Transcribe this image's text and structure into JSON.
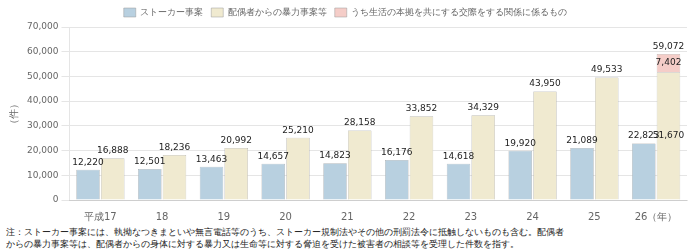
{
  "chart_data": {
    "type": "bar",
    "ylabel": "（件）",
    "categories": [
      "平成17",
      "18",
      "19",
      "20",
      "21",
      "22",
      "23",
      "24",
      "25",
      "26（年）"
    ],
    "series": [
      {
        "name": "ストーカー事案",
        "color": "#b8d0e0",
        "values": [
          12220,
          12501,
          13463,
          14657,
          14823,
          16176,
          14618,
          19920,
          21089,
          22823
        ],
        "value_labels": [
          "12,220",
          "12,501",
          "13,463",
          "14,657",
          "14,823",
          "16,176",
          "14,618",
          "19,920",
          "21,089",
          "22,823"
        ]
      },
      {
        "name": "配偶者からの暴力事案等",
        "color": "#f0ead0",
        "values": [
          16888,
          18236,
          20992,
          25210,
          28158,
          33852,
          34329,
          43950,
          49533,
          51670
        ],
        "value_labels": [
          "16,888",
          "18,236",
          "20,992",
          "25,210",
          "28,158",
          "33,852",
          "34,329",
          "43,950",
          "49,533",
          "51,670"
        ]
      },
      {
        "name": "うち生活の本拠を共にする交際をする関係に係るもの",
        "color": "#f5cdc8",
        "values": [
          0,
          0,
          0,
          0,
          0,
          0,
          0,
          0,
          0,
          7402
        ],
        "value_labels": [
          null,
          null,
          null,
          null,
          null,
          null,
          null,
          null,
          null,
          "7,402"
        ]
      }
    ],
    "stacked": [
      [
        "ストーカー事案"
      ],
      [
        "配偶者からの暴力事案等",
        "うち生活の本拠を共にする交際をする関係に係るもの"
      ]
    ],
    "totals": {
      "values": [
        null,
        null,
        null,
        null,
        null,
        null,
        null,
        null,
        null,
        59072
      ],
      "value_labels": [
        null,
        null,
        null,
        null,
        null,
        null,
        null,
        null,
        null,
        "59,072"
      ]
    },
    "data_labels": true,
    "ylim": [
      0,
      70000
    ],
    "yticks": [
      0,
      {
        "value": 10000,
        "label": "10,000"
      },
      {
        "value": 20000,
        "label": "20,000"
      },
      {
        "value": 30000,
        "label": "30,000"
      },
      {
        "value": 40000,
        "label": "40,000"
      },
      {
        "value": 50000,
        "label": "50,000"
      },
      {
        "value": 60000,
        "label": "60,000"
      },
      {
        "value": 70000,
        "label": "70,000"
      }
    ],
    "grid": true,
    "legend": "top",
    "annotations": [
      "注：ストーカー事案には、執拗なつきまといや無言電話等のうち、ストーカー規制法やその他の刑罰法令に抵触しないものも含む。配偶者",
      "からの暴力事案等は、配偶者からの身体に対する暴力又は生命等に対する脅迫を受けた被害者の相談等を受理した件数を指す。"
    ]
  }
}
